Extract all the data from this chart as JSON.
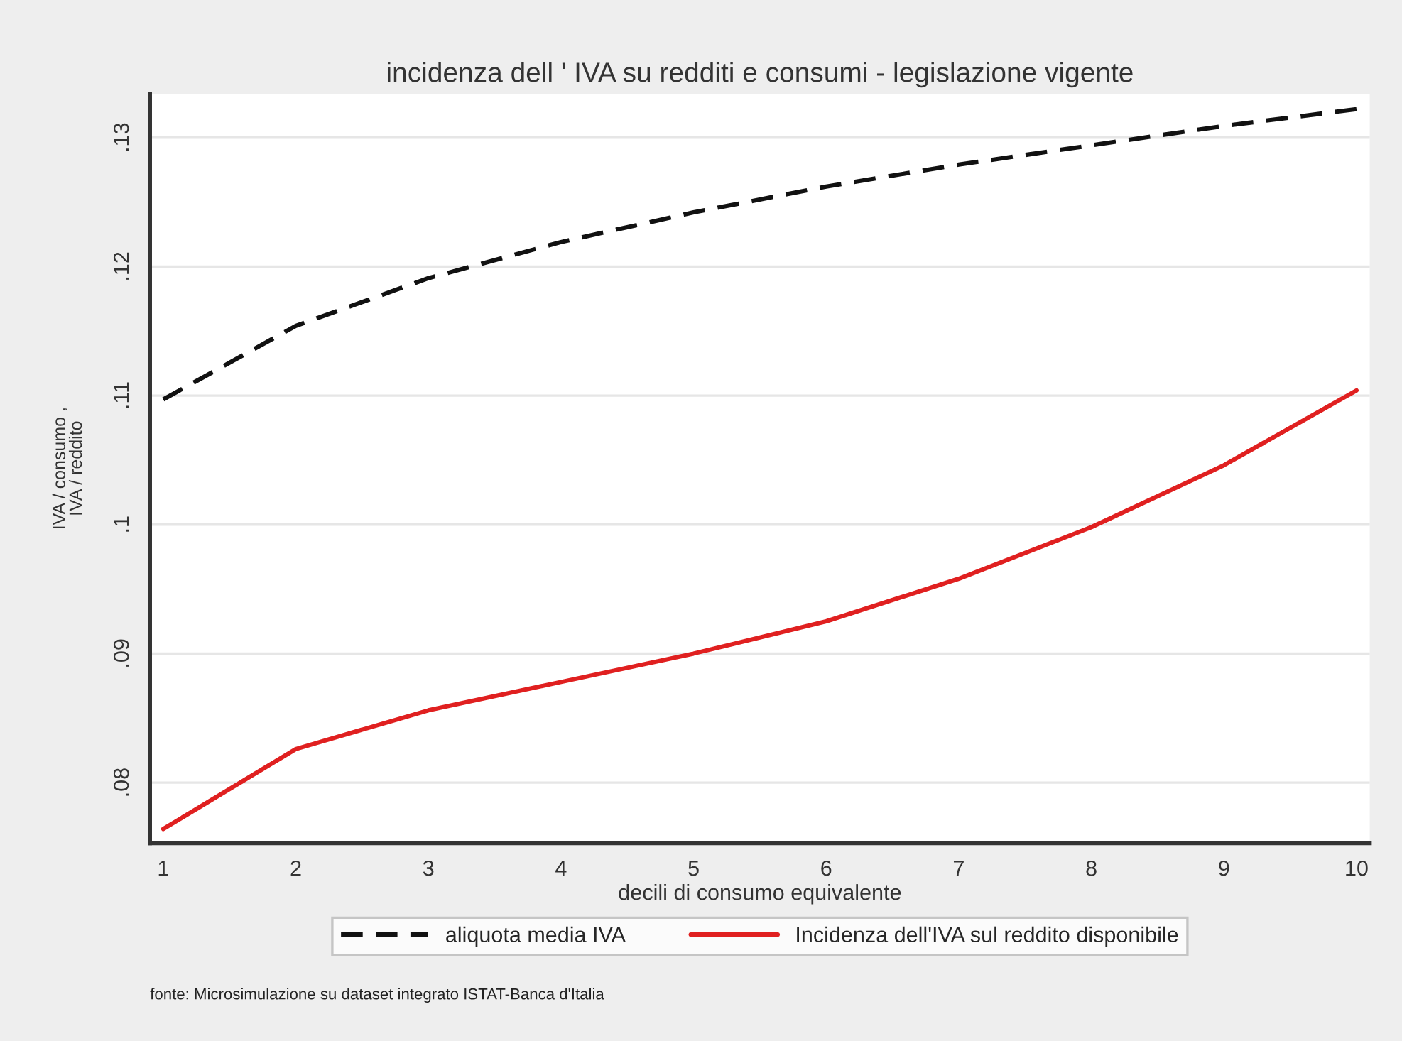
{
  "chart_data": {
    "type": "line",
    "title": "incidenza dell ' IVA su redditi e consumi - legislazione vigente",
    "xlabel": "decili di consumo equivalente",
    "ylabel": "IVA / consumo ,\nIVA / reddito",
    "x": [
      1,
      2,
      3,
      4,
      5,
      6,
      7,
      8,
      9,
      10
    ],
    "series": [
      {
        "name": "aliquota media IVA",
        "color": "#111111",
        "line_style": "dashed",
        "values": [
          0.1097,
          0.1154,
          0.1191,
          0.1219,
          0.1242,
          0.1262,
          0.1279,
          0.1294,
          0.1309,
          0.1322
        ]
      },
      {
        "name": "Incidenza dell'IVA sul reddito disponibile",
        "color": "#e02020",
        "line_style": "solid",
        "values": [
          0.0764,
          0.0826,
          0.0856,
          0.0878,
          0.09,
          0.0925,
          0.0958,
          0.0998,
          0.1046,
          0.1104
        ]
      }
    ],
    "xlim": [
      0.9,
      10.1
    ],
    "ylim": [
      0.0753,
      0.1334
    ],
    "xticks": [
      1,
      2,
      3,
      4,
      5,
      6,
      7,
      8,
      9,
      10
    ],
    "yticks": [
      {
        "value": 0.08,
        "label": ".08"
      },
      {
        "value": 0.09,
        "label": ".09"
      },
      {
        "value": 0.1,
        "label": ".1"
      },
      {
        "value": 0.11,
        "label": ".11"
      },
      {
        "value": 0.12,
        "label": ".12"
      },
      {
        "value": 0.13,
        "label": ".13"
      }
    ],
    "grid": "y",
    "legend": "bottom",
    "annotations": [
      "fonte: Microsimulazione su dataset integrato ISTAT-Banca d'Italia"
    ]
  }
}
